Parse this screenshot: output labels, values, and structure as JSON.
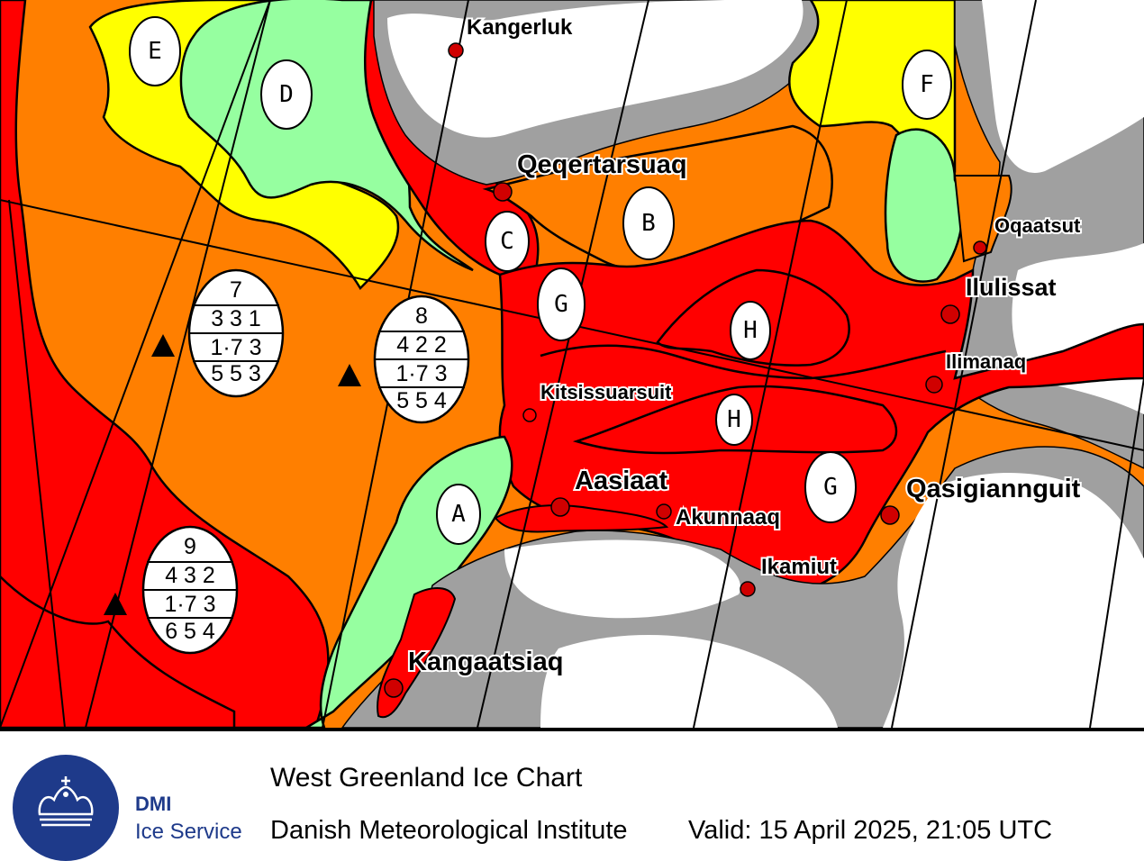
{
  "colors": {
    "red": "#ff0000",
    "orange": "#ff7f00",
    "yellow": "#ffff00",
    "green": "#96ffa0",
    "land": "#a0a0a0",
    "fast_ice_white": "#ffffff",
    "brand_blue": "#1e3a8a"
  },
  "places": {
    "kangerluk": "Kangerluk",
    "qeqertarsuaq": "Qeqertarsuaq",
    "oqaatsut": "Oqaatsut",
    "ilulissat": "Ilulissat",
    "ilimanaq": "Ilimanaq",
    "kitsissuarsuit": "Kitsissuarsuit",
    "aasiaat": "Aasiaat",
    "akunnaaq": "Akunnaaq",
    "qasigiannguit": "Qasigiannguit",
    "ikamiut": "Ikamiut",
    "kangaatsiaq": "Kangaatsiaq"
  },
  "zones": {
    "a": "A",
    "b": "B",
    "c": "C",
    "d": "D",
    "e": "E",
    "f": "F",
    "g1": "G",
    "g2": "G",
    "h1": "H",
    "h2": "H"
  },
  "egg_codes": {
    "e7": {
      "id": "7",
      "conc": "3 3 1",
      "stage": "1·7 3",
      "form": "5 5 3"
    },
    "e8": {
      "id": "8",
      "conc": "4 2 2",
      "stage": "1·7 3",
      "form": "5 5 4"
    },
    "e9": {
      "id": "9",
      "conc": "4 3 2",
      "stage": "1·7 3",
      "form": "6 5 4"
    }
  },
  "footer": {
    "brand_name": "DMI",
    "brand_service": "Ice Service",
    "title": "West Greenland Ice Chart",
    "institute": "Danish Meteorological Institute",
    "valid": "Valid: 15 April 2025, 21:05 UTC"
  },
  "icons": [
    "dmi-crown-logo-icon",
    "iceberg-triangle-icon",
    "settlement-dot-icon"
  ]
}
